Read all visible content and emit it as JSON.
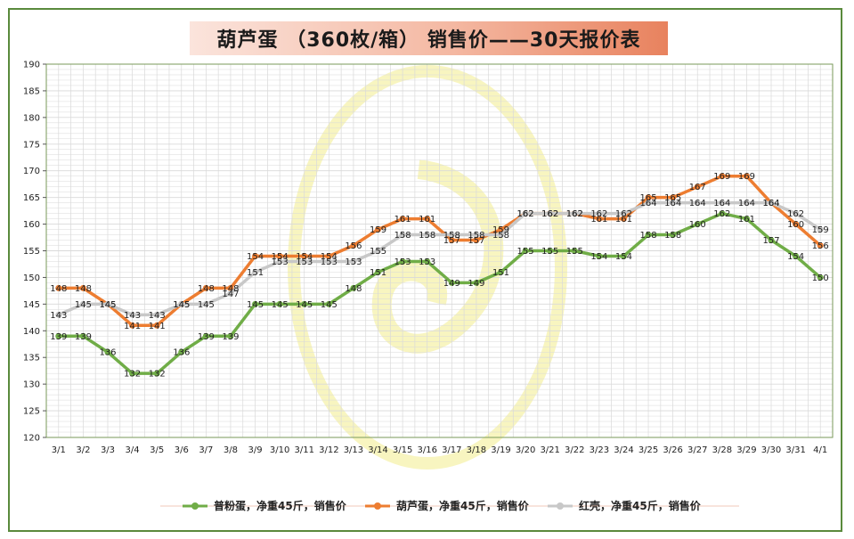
{
  "title": "葫芦蛋 （360枚/箱） 销售价——30天报价表",
  "colors": {
    "frame": "#5a8a3c",
    "grid": "#d9d9d9",
    "axis": "#7a9a5a",
    "watermark": "#f3f0a8"
  },
  "chart_data": {
    "type": "line",
    "categories": [
      "3/1",
      "3/2",
      "3/3",
      "3/4",
      "3/5",
      "3/6",
      "3/7",
      "3/8",
      "3/9",
      "3/10",
      "3/11",
      "3/12",
      "3/13",
      "3/14",
      "3/15",
      "3/16",
      "3/17",
      "3/18",
      "3/19",
      "3/20",
      "3/21",
      "3/22",
      "3/23",
      "3/24",
      "3/25",
      "3/26",
      "3/27",
      "3/28",
      "3/29",
      "3/30",
      "3/31",
      "4/1"
    ],
    "ylim": [
      120,
      190
    ],
    "yticks": [
      120,
      125,
      130,
      135,
      140,
      145,
      150,
      155,
      160,
      165,
      170,
      175,
      180,
      185,
      190
    ],
    "grid": true,
    "legend_position": "bottom",
    "series": [
      {
        "name": "普粉蛋，净重45斤，销售价",
        "color": "#70ad47",
        "values": [
          139,
          139,
          136,
          132,
          132,
          136,
          139,
          139,
          145,
          145,
          145,
          145,
          148,
          151,
          153,
          153,
          149,
          149,
          151,
          155,
          155,
          155,
          154,
          154,
          158,
          158,
          160,
          162,
          161,
          157,
          154,
          150
        ]
      },
      {
        "name": "葫芦蛋，净重45斤，销售价",
        "color": "#ed7d31",
        "values": [
          148,
          148,
          145,
          141,
          141,
          145,
          148,
          148,
          154,
          154,
          154,
          154,
          156,
          159,
          161,
          161,
          157,
          157,
          159,
          162,
          162,
          162,
          161,
          161,
          165,
          165,
          167,
          169,
          169,
          164,
          160,
          156
        ]
      },
      {
        "name": "红壳，净重45斤，销售价",
        "color": "#c8c8c8",
        "values": [
          143,
          145,
          145,
          143,
          143,
          145,
          145,
          147,
          151,
          153,
          153,
          153,
          153,
          155,
          158,
          158,
          158,
          158,
          158,
          162,
          162,
          162,
          162,
          162,
          164,
          164,
          164,
          164,
          164,
          164,
          162,
          159
        ]
      }
    ]
  }
}
